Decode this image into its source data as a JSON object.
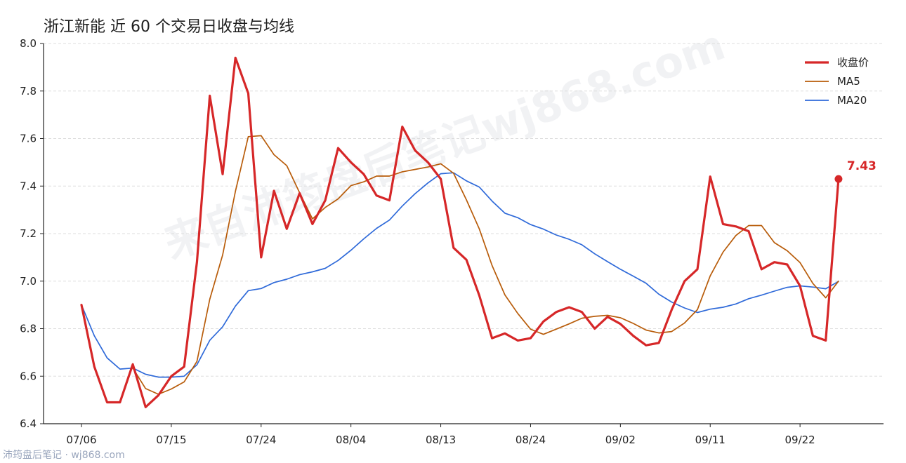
{
  "footer_text": "沛筠盘后笔记 · wj868.com",
  "watermark_text": "来自沛筠盘后笔记wj868.com",
  "chart_data": {
    "type": "line",
    "title": "浙江新能 近 60 个交易日收盘与均线",
    "xlabel": "",
    "ylabel": "",
    "ylim": [
      6.4,
      8.0
    ],
    "yticks": [
      6.4,
      6.6,
      6.8,
      7.0,
      7.2,
      7.4,
      7.6,
      7.8,
      8.0
    ],
    "ytick_labels": [
      "6.4",
      "6.6",
      "6.8",
      "7.0",
      "7.2",
      "7.4",
      "7.6",
      "7.8",
      "8.0"
    ],
    "xticks": [
      {
        "index": 0,
        "label": "07/06"
      },
      {
        "index": 7,
        "label": "07/15"
      },
      {
        "index": 14,
        "label": "07/24"
      },
      {
        "index": 21,
        "label": "08/04"
      },
      {
        "index": 28,
        "label": "08/13"
      },
      {
        "index": 35,
        "label": "08/24"
      },
      {
        "index": 42,
        "label": "09/02"
      },
      {
        "index": 49,
        "label": "09/11"
      },
      {
        "index": 56,
        "label": "09/22"
      }
    ],
    "grid": "horizontal-dashed",
    "legend": "top-right",
    "series": [
      {
        "name": "收盘价",
        "color": "#d62728",
        "values": [
          6.9,
          6.64,
          6.49,
          6.49,
          6.65,
          6.47,
          6.52,
          6.6,
          6.64,
          7.08,
          7.78,
          7.45,
          7.94,
          7.79,
          7.1,
          7.38,
          7.22,
          7.37,
          7.24,
          7.34,
          7.56,
          7.5,
          7.45,
          7.36,
          7.34,
          7.65,
          7.55,
          7.5,
          7.43,
          7.14,
          7.09,
          6.94,
          6.76,
          6.78,
          6.75,
          6.76,
          6.83,
          6.87,
          6.89,
          6.87,
          6.8,
          6.85,
          6.82,
          6.77,
          6.73,
          6.74,
          6.88,
          7.0,
          7.05,
          7.44,
          7.24,
          7.23,
          7.21,
          7.05,
          7.08,
          7.07,
          6.98,
          6.77,
          6.75,
          7.43
        ]
      },
      {
        "name": "MA5",
        "color": "#b85c0a",
        "values": [
          null,
          null,
          null,
          null,
          6.634,
          6.548,
          6.524,
          6.546,
          6.576,
          6.662,
          6.924,
          7.11,
          7.378,
          7.608,
          7.612,
          7.532,
          7.486,
          7.372,
          7.262,
          7.31,
          7.346,
          7.402,
          7.418,
          7.442,
          7.442,
          7.46,
          7.47,
          7.48,
          7.494,
          7.454,
          7.342,
          7.22,
          7.066,
          6.942,
          6.864,
          6.798,
          6.776,
          6.798,
          6.82,
          6.844,
          6.852,
          6.856,
          6.846,
          6.822,
          6.794,
          6.782,
          6.788,
          6.824,
          6.88,
          7.022,
          7.122,
          7.192,
          7.234,
          7.234,
          7.162,
          7.128,
          7.078,
          6.99,
          6.93,
          7.0
        ]
      },
      {
        "name": "MA20",
        "color": "#2f6ad9",
        "values": [
          6.9,
          6.77,
          6.677,
          6.63,
          6.634,
          6.608,
          6.596,
          6.596,
          6.6,
          6.648,
          6.751,
          6.808,
          6.895,
          6.96,
          6.969,
          6.994,
          7.008,
          7.027,
          7.039,
          7.054,
          7.087,
          7.13,
          7.178,
          7.222,
          7.257,
          7.316,
          7.368,
          7.413,
          7.452,
          7.456,
          7.422,
          7.396,
          7.337,
          7.286,
          7.267,
          7.238,
          7.219,
          7.194,
          7.176,
          7.153,
          7.115,
          7.082,
          7.05,
          7.021,
          6.991,
          6.945,
          6.912,
          6.887,
          6.868,
          6.882,
          6.89,
          6.904,
          6.926,
          6.941,
          6.958,
          6.974,
          6.98,
          6.975,
          6.968,
          6.999
        ]
      }
    ],
    "last_label": "7.43"
  }
}
